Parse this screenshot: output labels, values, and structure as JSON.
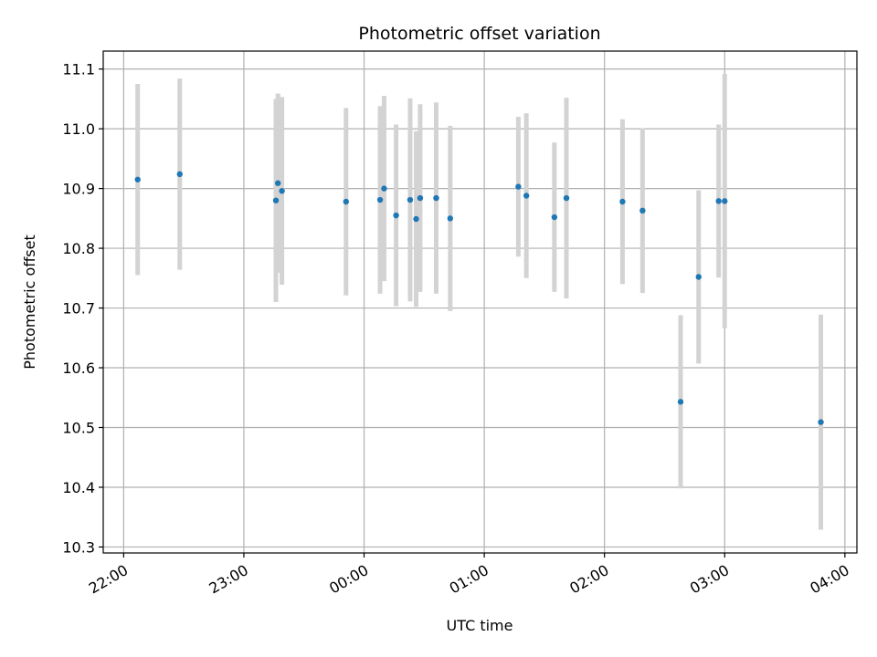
{
  "chart_data": {
    "type": "scatter",
    "title": "Photometric offset variation",
    "xlabel": "UTC time",
    "ylabel": "Photometric offset",
    "x_ticks": [
      "22:00",
      "23:00",
      "00:00",
      "01:00",
      "02:00",
      "03:00",
      "04:00"
    ],
    "y_ticks": [
      "10.3",
      "10.4",
      "10.5",
      "10.6",
      "10.7",
      "10.8",
      "10.9",
      "11.0",
      "11.1"
    ],
    "x_tick_hours": [
      0,
      1,
      2,
      3,
      4,
      5,
      6
    ],
    "y_tick_values": [
      10.3,
      10.4,
      10.5,
      10.6,
      10.7,
      10.8,
      10.9,
      11.0,
      11.1
    ],
    "xlim_hours_from_2200": [
      -0.17,
      6.1
    ],
    "ylim": [
      10.29,
      11.13
    ],
    "grid": true,
    "colors": {
      "point": "#1f77b4",
      "errorbar": "#d3d3d3",
      "grid": "#b0b0b0"
    },
    "series": [
      {
        "points": [
          {
            "t": "22:07",
            "y": 10.915,
            "err": 0.16
          },
          {
            "t": "22:28",
            "y": 10.924,
            "err": 0.16
          },
          {
            "t": "23:16",
            "y": 10.88,
            "err": 0.17
          },
          {
            "t": "23:17",
            "y": 10.909,
            "err": 0.15
          },
          {
            "t": "23:19",
            "y": 10.896,
            "err": 0.157
          },
          {
            "t": "23:51",
            "y": 10.878,
            "err": 0.157
          },
          {
            "t": "00:08",
            "y": 10.881,
            "err": 0.157
          },
          {
            "t": "00:10",
            "y": 10.9,
            "err": 0.155
          },
          {
            "t": "00:16",
            "y": 10.855,
            "err": 0.152
          },
          {
            "t": "00:23",
            "y": 10.881,
            "err": 0.17
          },
          {
            "t": "00:26",
            "y": 10.849,
            "err": 0.147
          },
          {
            "t": "00:28",
            "y": 10.884,
            "err": 0.157
          },
          {
            "t": "00:36",
            "y": 10.884,
            "err": 0.16
          },
          {
            "t": "00:43",
            "y": 10.85,
            "err": 0.155
          },
          {
            "t": "01:17",
            "y": 10.903,
            "err": 0.117
          },
          {
            "t": "01:21",
            "y": 10.888,
            "err": 0.138
          },
          {
            "t": "01:35",
            "y": 10.852,
            "err": 0.125
          },
          {
            "t": "01:41",
            "y": 10.884,
            "err": 0.168
          },
          {
            "t": "02:09",
            "y": 10.878,
            "err": 0.138
          },
          {
            "t": "02:19",
            "y": 10.863,
            "err": 0.138
          },
          {
            "t": "02:38",
            "y": 10.543,
            "err": 0.145
          },
          {
            "t": "02:47",
            "y": 10.752,
            "err": 0.145
          },
          {
            "t": "02:57",
            "y": 10.879,
            "err": 0.128
          },
          {
            "t": "03:00",
            "y": 10.879,
            "err": 0.213
          },
          {
            "t": "03:48",
            "y": 10.509,
            "err": 0.18
          }
        ]
      }
    ]
  }
}
